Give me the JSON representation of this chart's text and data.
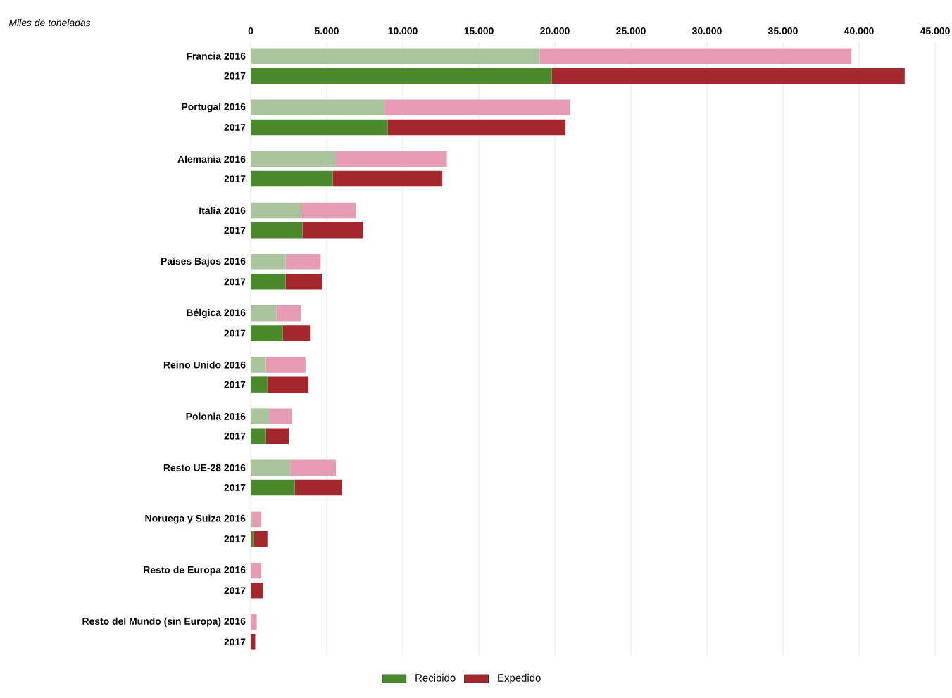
{
  "chart_data": {
    "type": "bar",
    "orientation": "horizontal",
    "stacked": true,
    "xlabel": "Miles de toneladas",
    "categories": [
      "Francia 2016",
      "2017",
      "Portugal 2016",
      "2017",
      "Alemania 2016",
      "2017",
      "Italia 2016",
      "2017",
      "Países Bajos 2016",
      "2017",
      "Bélgica 2016",
      "2017",
      "Reino Unido 2016",
      "2017",
      "Polonia 2016",
      "2017",
      "Resto UE-28 2016",
      "2017",
      "Noruega y Suiza 2016",
      "2017",
      "Resto de Europa 2016",
      "2017",
      "Resto del Mundo (sin Europa) 2016",
      "2017"
    ],
    "series": [
      {
        "name": "Recibido",
        "color": "#4a8a2c",
        "colors": [
          "#a9c49c",
          "#4a8a2c",
          "#a9c49c",
          "#4a8a2c",
          "#a9c49c",
          "#4a8a2c",
          "#a9c49c",
          "#4a8a2c",
          "#a9c49c",
          "#4a8a2c",
          "#a9c49c",
          "#4a8a2c",
          "#a9c49c",
          "#4a8a2c",
          "#a9c49c",
          "#4a8a2c",
          "#a9c49c",
          "#4a8a2c",
          "#a9c49c",
          "#4a8a2c",
          "#a9c49c",
          "#4a8a2c",
          "#a9c49c",
          "#4a8a2c"
        ],
        "values": [
          19000,
          19800,
          8800,
          9000,
          5600,
          5400,
          3300,
          3400,
          2300,
          2300,
          1700,
          2100,
          1000,
          1100,
          1200,
          1000,
          2600,
          2900,
          100,
          200,
          0,
          0,
          0,
          0
        ]
      },
      {
        "name": "Expedido",
        "color": "#a3282e",
        "colors": [
          "#e79ab4",
          "#a3282e",
          "#e79ab4",
          "#a3282e",
          "#e79ab4",
          "#a3282e",
          "#e79ab4",
          "#a3282e",
          "#e79ab4",
          "#a3282e",
          "#e79ab4",
          "#a3282e",
          "#e79ab4",
          "#a3282e",
          "#e79ab4",
          "#a3282e",
          "#e79ab4",
          "#a3282e",
          "#e79ab4",
          "#a3282e",
          "#e79ab4",
          "#a3282e",
          "#e79ab4",
          "#a3282e"
        ],
        "values": [
          20500,
          23200,
          12200,
          11700,
          7300,
          7200,
          3600,
          4000,
          2300,
          2400,
          1600,
          1800,
          2600,
          2700,
          1500,
          1500,
          3000,
          3100,
          600,
          900,
          700,
          800,
          400,
          300
        ]
      }
    ],
    "xlim": [
      0,
      45000
    ],
    "xticks": [
      0,
      {
        "value": 5000,
        "label": "5.000"
      },
      {
        "value": 10000,
        "label": "10.000"
      },
      {
        "value": 15000,
        "label": "15.000"
      },
      {
        "value": 20000,
        "label": "20.000"
      },
      {
        "value": 25000,
        "label": "25.000"
      },
      {
        "value": 30000,
        "label": "30.000"
      },
      {
        "value": 35000,
        "label": "35.000"
      },
      {
        "value": 40000,
        "label": "40.000"
      },
      {
        "value": 45000,
        "label": "45.000"
      }
    ],
    "grid": "x",
    "legend": "bottom"
  }
}
